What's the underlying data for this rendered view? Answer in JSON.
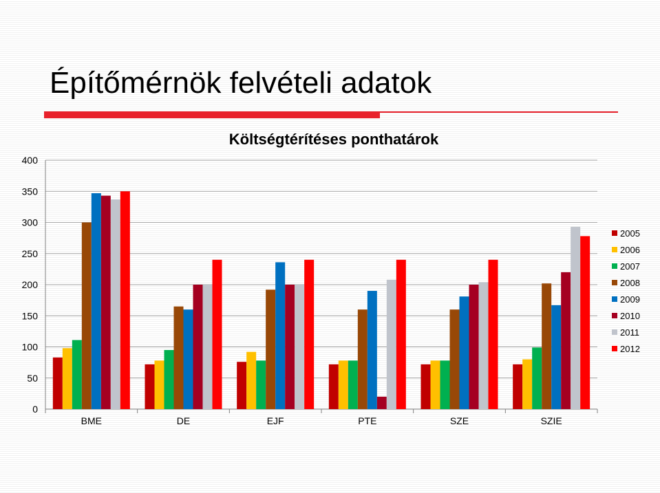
{
  "slide": {
    "title": "Építőmérnök felvételi adatok"
  },
  "chart_data": {
    "type": "bar",
    "title": "Költségtérítéses ponthatárok",
    "categories": [
      "BME",
      "DE",
      "EJF",
      "PTE",
      "SZE",
      "SZIE"
    ],
    "ylim": [
      0,
      400
    ],
    "yticks": [
      0,
      50,
      100,
      150,
      200,
      250,
      300,
      350,
      400
    ],
    "grid": true,
    "legend_position": "right",
    "series": [
      {
        "name": "2005",
        "color": "#c00000",
        "values": [
          83,
          72,
          76,
          72,
          72,
          72
        ]
      },
      {
        "name": "2006",
        "color": "#ffc000",
        "values": [
          98,
          78,
          92,
          78,
          78,
          80
        ]
      },
      {
        "name": "2007",
        "color": "#00b050",
        "values": [
          111,
          95,
          78,
          78,
          78,
          99
        ]
      },
      {
        "name": "2008",
        "color": "#984807",
        "values": [
          300,
          165,
          192,
          160,
          160,
          202
        ]
      },
      {
        "name": "2009",
        "color": "#0070c0",
        "values": [
          347,
          160,
          236,
          190,
          181,
          167
        ]
      },
      {
        "name": "2010",
        "color": "#a50021",
        "values": [
          343,
          200,
          200,
          20,
          200,
          220
        ]
      },
      {
        "name": "2011",
        "color": "#c0c4cc",
        "values": [
          337,
          200,
          200,
          208,
          204,
          293
        ]
      },
      {
        "name": "2012",
        "color": "#ff0000",
        "values": [
          350,
          240,
          240,
          240,
          240,
          278
        ]
      }
    ]
  }
}
